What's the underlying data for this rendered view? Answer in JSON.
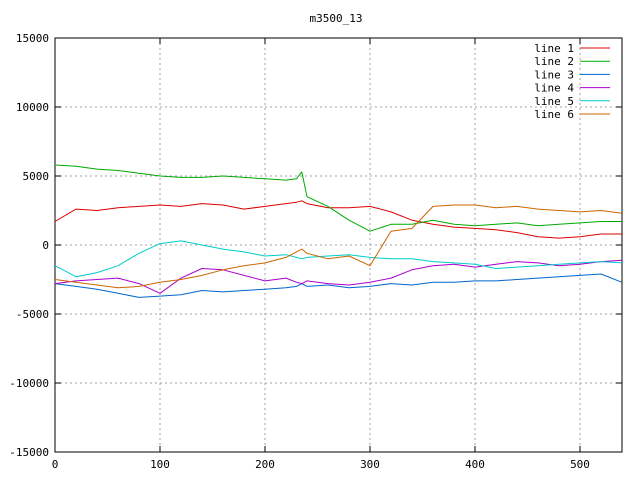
{
  "chart_data": {
    "type": "line",
    "title": "m3500_13",
    "xlabel": "",
    "ylabel": "",
    "xlim": [
      0,
      540
    ],
    "ylim": [
      -15000,
      15000
    ],
    "xticks": [
      0,
      100,
      200,
      300,
      400,
      500
    ],
    "yticks": [
      -15000,
      -10000,
      -5000,
      0,
      5000,
      10000,
      15000
    ],
    "grid": true,
    "legend_position": "top-right",
    "x": [
      0,
      20,
      40,
      60,
      80,
      100,
      120,
      140,
      160,
      180,
      200,
      220,
      230,
      235,
      240,
      260,
      280,
      300,
      320,
      340,
      360,
      380,
      400,
      420,
      440,
      460,
      480,
      500,
      520,
      540
    ],
    "series": [
      {
        "name": "line 1",
        "color": "#dd0000",
        "values": [
          1700,
          2600,
          2500,
          2700,
          2800,
          2900,
          2800,
          3000,
          2900,
          2600,
          2800,
          3000,
          3100,
          3200,
          3000,
          2700,
          2700,
          2800,
          2400,
          1800,
          1500,
          1300,
          1200,
          1100,
          900,
          600,
          500,
          600,
          800,
          800
        ]
      },
      {
        "name": "line 2",
        "color": "#00aa00",
        "values": [
          5800,
          5700,
          5500,
          5400,
          5200,
          5000,
          4900,
          4900,
          5000,
          4900,
          4800,
          4700,
          4800,
          5300,
          3500,
          2800,
          1800,
          1000,
          1500,
          1500,
          1800,
          1500,
          1400,
          1500,
          1600,
          1400,
          1500,
          1600,
          1700,
          1700
        ]
      },
      {
        "name": "line 3",
        "color": "#0066cc",
        "values": [
          -2800,
          -3000,
          -3200,
          -3500,
          -3800,
          -3700,
          -3600,
          -3300,
          -3400,
          -3300,
          -3200,
          -3100,
          -3000,
          -2800,
          -3000,
          -2900,
          -3100,
          -3000,
          -2800,
          -2900,
          -2700,
          -2700,
          -2600,
          -2600,
          -2500,
          -2400,
          -2300,
          -2200,
          -2100,
          -2700
        ]
      },
      {
        "name": "line 4",
        "color": "#aa00cc",
        "values": [
          -2800,
          -2600,
          -2500,
          -2400,
          -2800,
          -3500,
          -2400,
          -1700,
          -1800,
          -2200,
          -2600,
          -2400,
          -2700,
          -2800,
          -2600,
          -2800,
          -2900,
          -2700,
          -2400,
          -1800,
          -1500,
          -1400,
          -1600,
          -1400,
          -1200,
          -1300,
          -1500,
          -1400,
          -1200,
          -1100
        ]
      },
      {
        "name": "line 5",
        "color": "#00cccc",
        "values": [
          -1500,
          -2300,
          -2000,
          -1500,
          -600,
          100,
          300,
          0,
          -300,
          -500,
          -800,
          -700,
          -900,
          -1000,
          -900,
          -800,
          -700,
          -900,
          -1000,
          -1000,
          -1200,
          -1300,
          -1400,
          -1700,
          -1600,
          -1500,
          -1400,
          -1300,
          -1200,
          -1300
        ]
      },
      {
        "name": "line 6",
        "color": "#cc6600",
        "values": [
          -2500,
          -2700,
          -2900,
          -3100,
          -3000,
          -2700,
          -2500,
          -2200,
          -1800,
          -1500,
          -1300,
          -900,
          -500,
          -300,
          -600,
          -1000,
          -800,
          -1500,
          1000,
          1200,
          2800,
          2900,
          2900,
          2700,
          2800,
          2600,
          2500,
          2400,
          2500,
          2300
        ]
      }
    ]
  }
}
